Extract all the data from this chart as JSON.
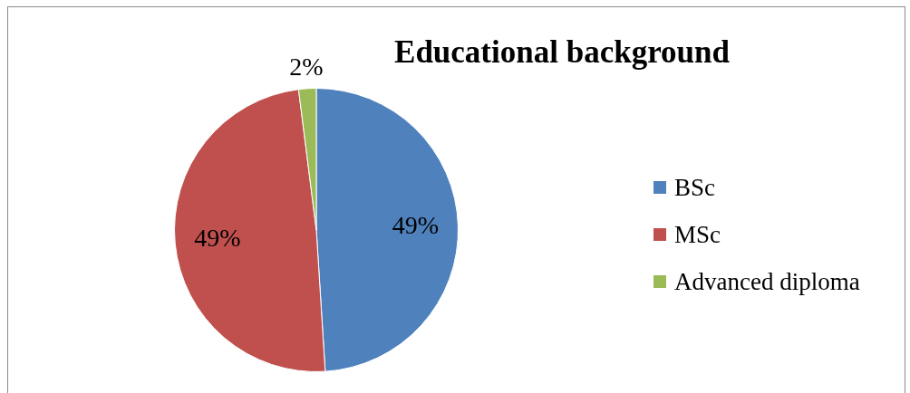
{
  "chart_data": {
    "type": "pie",
    "title": "Educational background",
    "categories": [
      "BSc",
      "MSc",
      "Advanced diploma"
    ],
    "values": [
      49,
      49,
      2
    ],
    "colors": [
      "#4f81bd",
      "#c0504d",
      "#9bbb59"
    ],
    "value_labels": [
      "49%",
      "49%",
      "2%"
    ],
    "legend": "right"
  }
}
